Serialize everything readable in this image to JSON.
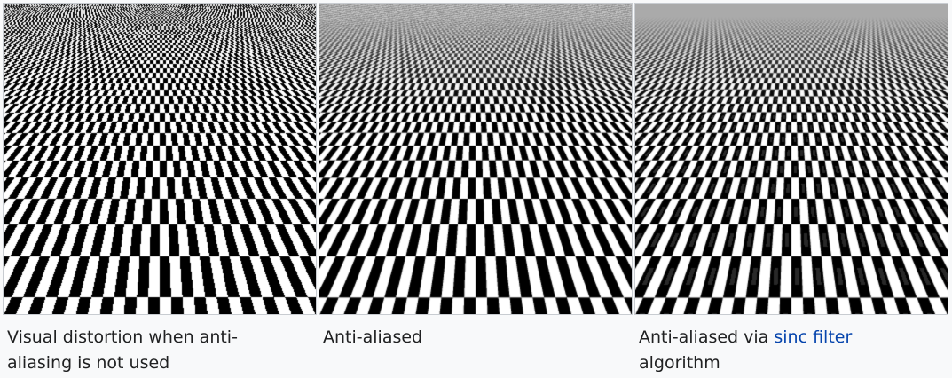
{
  "gallery": {
    "items": [
      {
        "image": "checkerboard-aliased",
        "caption": "Visual distortion when anti-aliasing is not used"
      },
      {
        "image": "checkerboard-antialiased",
        "caption": "Anti-aliased"
      },
      {
        "image": "checkerboard-sinc-filter",
        "caption_before": "Anti-aliased via ",
        "caption_link": "sinc filter",
        "caption_after": "algorithm"
      }
    ]
  },
  "colors": {
    "black": "#000000",
    "white": "#ffffff",
    "gray": "#aaaaaa",
    "link": "#0645ad",
    "text": "#202122",
    "border": "#c8ccd1",
    "background": "#f8f9fa"
  }
}
